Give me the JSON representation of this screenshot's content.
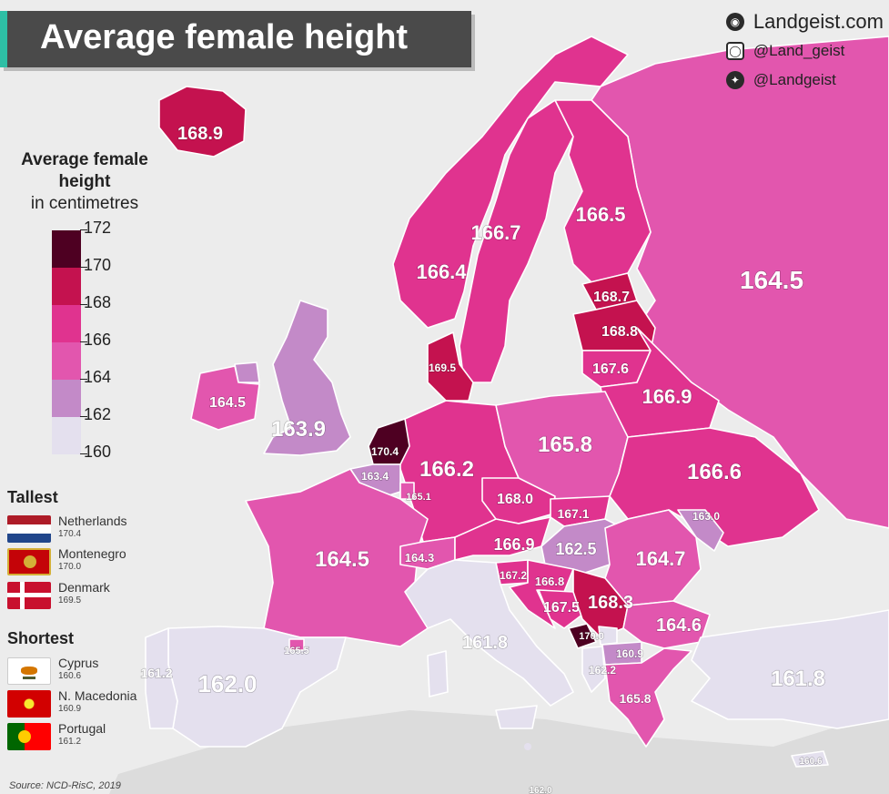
{
  "title": "Average female height",
  "social": {
    "website": "Landgeist.com",
    "instagram": "@Land_geist",
    "twitter": "@Landgeist",
    "website_icon": "globe-icon",
    "instagram_icon": "instagram-icon",
    "twitter_icon": "twitter-icon"
  },
  "legend": {
    "title_bold": "Average female height",
    "title_unit": "in centimetres",
    "ticks": [
      "172",
      "170",
      "168",
      "166",
      "164",
      "162",
      "160"
    ],
    "colors": [
      "#4e0022",
      "#c4124f",
      "#e0338f",
      "#e256ae",
      "#c38ac8",
      "#e4e0ee"
    ]
  },
  "tallest": {
    "heading": "Tallest",
    "items": [
      {
        "name": "Netherlands",
        "value": "170.4",
        "flag": "netherlands-flag"
      },
      {
        "name": "Montenegro",
        "value": "170.0",
        "flag": "montenegro-flag"
      },
      {
        "name": "Denmark",
        "value": "169.5",
        "flag": "denmark-flag"
      }
    ]
  },
  "shortest": {
    "heading": "Shortest",
    "items": [
      {
        "name": "Cyprus",
        "value": "160.6",
        "flag": "cyprus-flag"
      },
      {
        "name": "N. Macedonia",
        "value": "160.9",
        "flag": "north-macedonia-flag"
      },
      {
        "name": "Portugal",
        "value": "161.2",
        "flag": "portugal-flag"
      }
    ]
  },
  "countries": {
    "iceland": "168.9",
    "norway": "166.4",
    "sweden": "166.7",
    "finland": "166.5",
    "russia": "164.5",
    "estonia": "168.7",
    "latvia": "168.8",
    "lithuania": "167.6",
    "belarus": "166.9",
    "denmark": "169.5",
    "uk": "163.9",
    "ireland": "164.5",
    "netherlands": "170.4",
    "belgium": "163.4",
    "luxembourg": "165.1",
    "germany": "166.2",
    "poland": "165.8",
    "czechia": "168.0",
    "slovakia": "167.1",
    "ukraine": "166.6",
    "moldova": "163.0",
    "france": "164.5",
    "switzerland": "164.3",
    "austria": "166.9",
    "hungary": "162.5",
    "romania": "164.7",
    "slovenia": "167.2",
    "croatia": "166.8",
    "bosnia": "167.5",
    "serbia": "168.3",
    "montenegro": "170.0",
    "north_macedonia": "160.9",
    "albania": "162.2",
    "bulgaria": "164.6",
    "greece": "165.8",
    "turkey": "161.8",
    "italy": "161.8",
    "spain": "162.0",
    "portugal": "161.2",
    "andorra": "165.5",
    "cyprus": "160.6",
    "malta": "162.0"
  },
  "source": "Source: NCD-RisC, 2019"
}
